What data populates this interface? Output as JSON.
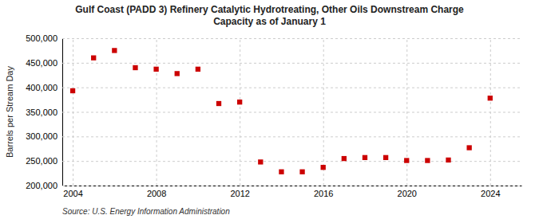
{
  "chart_data": {
    "type": "scatter",
    "title": "Gulf Coast (PADD 3) Refinery Catalytic Hydrotreating, Other Oils Downstream Charge\nCapacity as of January 1",
    "ylabel": "Barrels per Stream Day",
    "source": "Source: U.S. Energy Information Administration",
    "x": [
      2004,
      2005,
      2006,
      2007,
      2008,
      2009,
      2010,
      2011,
      2012,
      2013,
      2014,
      2015,
      2016,
      2017,
      2018,
      2019,
      2020,
      2021,
      2022,
      2023,
      2024
    ],
    "values": [
      393000,
      460000,
      475000,
      440000,
      437000,
      428000,
      437000,
      367000,
      370000,
      248000,
      228000,
      228000,
      237000,
      255000,
      257000,
      257000,
      251000,
      251000,
      252000,
      277000,
      378000
    ],
    "color": "#cc0000",
    "marker": "square",
    "xlim": [
      2003.5,
      2025.5
    ],
    "xticks": [
      2004,
      2008,
      2012,
      2016,
      2020,
      2024
    ],
    "ylim": [
      200000,
      500000
    ],
    "yticks": [
      {
        "value": 200000,
        "label": "200,000"
      },
      {
        "value": 250000,
        "label": "250,000"
      },
      {
        "value": 300000,
        "label": "300,000"
      },
      {
        "value": 350000,
        "label": "350,000"
      },
      {
        "value": 400000,
        "label": "400,000"
      },
      {
        "value": 450000,
        "label": "450,000"
      },
      {
        "value": 500000,
        "label": "500,000"
      }
    ],
    "grid": true
  }
}
